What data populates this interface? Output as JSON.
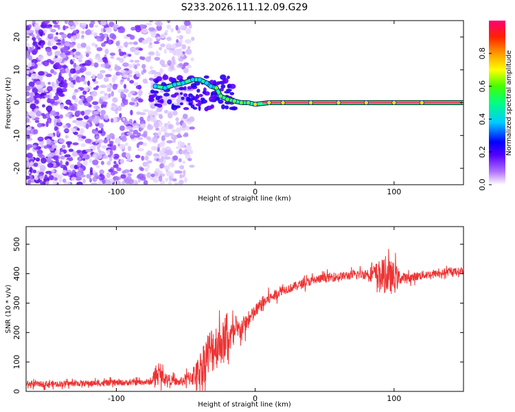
{
  "title": "S233.2026.111.12.09.G29",
  "colors": {
    "snr_line": "#ee3333",
    "spectrum_line": "#22ffaa",
    "frame": "#000000"
  },
  "chart_data": [
    {
      "type": "heatmap",
      "name": "spectrogram",
      "xlabel": "Height of straight line (km)",
      "ylabel": "Frequency (Hz)",
      "xlim": [
        -165,
        150
      ],
      "ylim": [
        -25,
        25
      ],
      "xticks": [
        -100,
        0,
        100
      ],
      "yticks": [
        -20,
        -10,
        0,
        10,
        20
      ],
      "colorbar": {
        "label": "Normalized spectral amplitude",
        "range": [
          0,
          1
        ],
        "ticks": [
          0.0,
          0.2,
          0.4,
          0.6,
          0.8
        ],
        "tick_labels": [
          "0.0",
          "0.2",
          "0.4",
          "0.6",
          "0.8"
        ],
        "colors": [
          "#ffffff",
          "#7b00ff",
          "#0000ff",
          "#00ffff",
          "#00ff00",
          "#ffff00",
          "#ff8800",
          "#ff0000",
          "#ff0088"
        ]
      },
      "peak_track": {
        "x": [
          -72,
          -65,
          -58,
          -52,
          -45,
          -40,
          -35,
          -32,
          -28,
          -25,
          -20,
          -15,
          -10,
          -5,
          0,
          10,
          20,
          40,
          60,
          80,
          100,
          120,
          150
        ],
        "y": [
          5,
          4.5,
          5.5,
          6,
          7,
          7,
          6,
          5,
          4.5,
          2,
          1,
          0.5,
          0,
          0,
          -0.5,
          0,
          0,
          0,
          0,
          0,
          0,
          0,
          0
        ]
      },
      "noise_region": {
        "x_range": [
          -165,
          -45
        ],
        "y_range": [
          -25,
          25
        ]
      }
    },
    {
      "type": "line",
      "name": "snr",
      "xlabel": "Height of straight line (km)",
      "ylabel": "SNR (10 * v/v)",
      "xlim": [
        -165,
        150
      ],
      "ylim": [
        0,
        560
      ],
      "xticks": [
        -100,
        0,
        100
      ],
      "yticks": [
        0,
        100,
        200,
        300,
        400,
        500
      ],
      "series": [
        {
          "name": "SNR",
          "x": [
            -165,
            -150,
            -130,
            -110,
            -90,
            -75,
            -70,
            -65,
            -55,
            -48,
            -42,
            -38,
            -35,
            -30,
            -25,
            -20,
            -15,
            -10,
            -5,
            0,
            5,
            10,
            15,
            20,
            25,
            30,
            40,
            50,
            60,
            70,
            80,
            85,
            90,
            95,
            100,
            105,
            110,
            120,
            130,
            140,
            150
          ],
          "values": [
            25,
            25,
            27,
            28,
            30,
            32,
            60,
            45,
            30,
            45,
            60,
            90,
            120,
            150,
            165,
            180,
            195,
            215,
            240,
            270,
            300,
            315,
            330,
            345,
            350,
            360,
            375,
            385,
            390,
            395,
            400,
            400,
            395,
            390,
            385,
            385,
            385,
            395,
            400,
            405,
            410
          ],
          "amplitude": [
            20,
            20,
            20,
            20,
            20,
            20,
            60,
            40,
            25,
            50,
            90,
            140,
            160,
            170,
            150,
            120,
            90,
            70,
            60,
            50,
            45,
            40,
            35,
            30,
            30,
            30,
            30,
            30,
            30,
            30,
            35,
            60,
            110,
            120,
            110,
            40,
            30,
            30,
            25,
            25,
            25
          ]
        }
      ]
    }
  ]
}
